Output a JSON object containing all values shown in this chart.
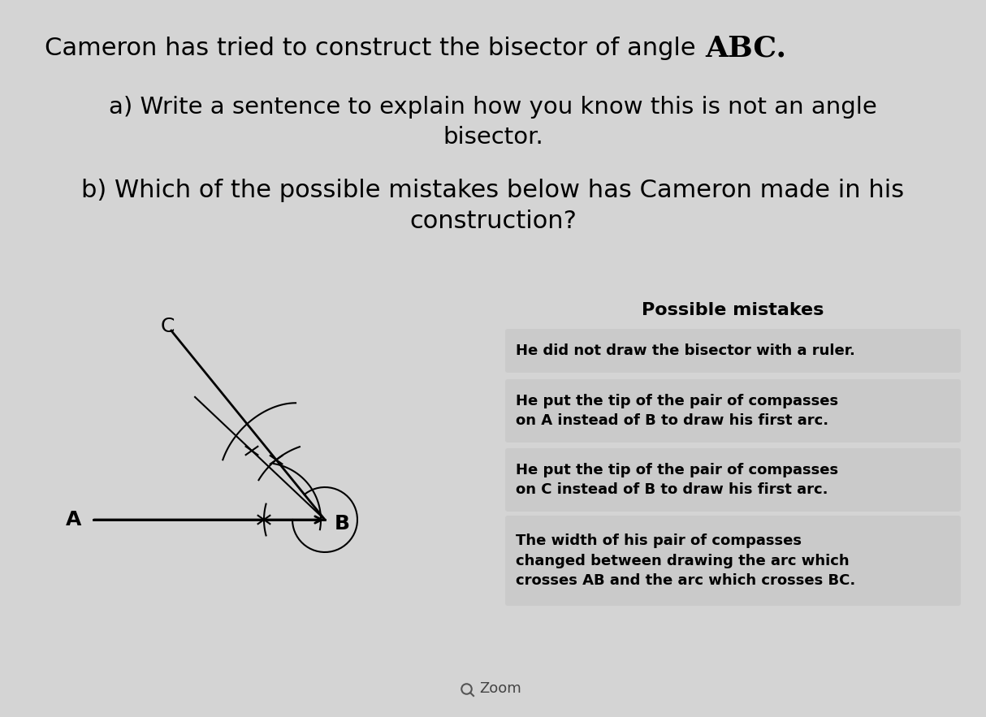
{
  "bg_color": "#d4d4d4",
  "title_normal": "Cameron has tried to construct the bisector of angle ",
  "title_bold": "ABC.",
  "qa_line1": "a) Write a sentence to explain how you know this is not an angle",
  "qa_line2": "bisector.",
  "qb_line1": "b) Which of the possible mistakes below has Cameron made in his",
  "qb_line2": "construction?",
  "possible_mistakes_title": "Possible mistakes",
  "mistakes": [
    "He did not draw the bisector with a ruler.",
    "He put the tip of the pair of compasses\non A instead of B to draw his first arc.",
    "He put the tip of the pair of compasses\non C instead of B to draw his first arc.",
    "The width of his pair of compasses\nchanged between drawing the arc which\ncrosses AB and the arc which crosses BC."
  ],
  "box_bg": "#cacaca",
  "label_A": "A",
  "label_B": "B",
  "label_C": "C",
  "zoom_text": "Zoom"
}
